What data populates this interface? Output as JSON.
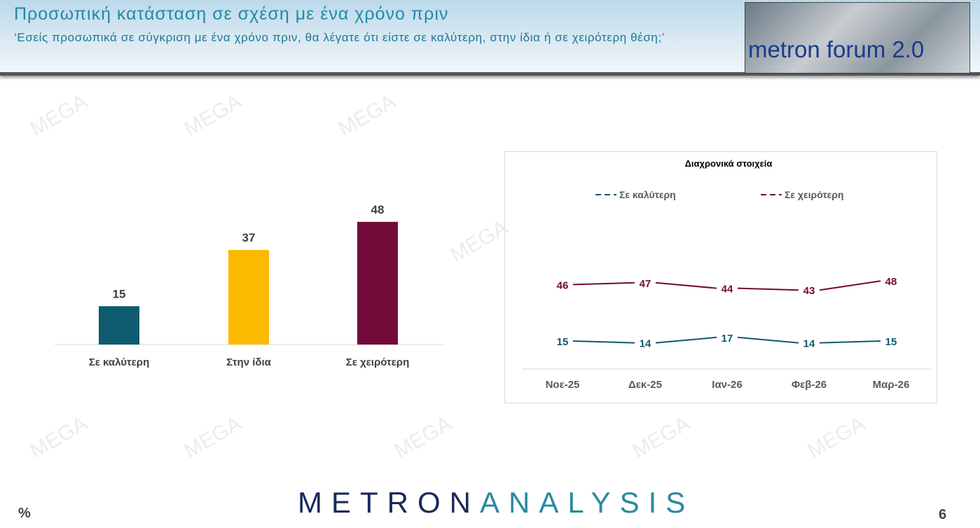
{
  "header": {
    "title": "Προσωπική κατάσταση σε σχέση με ένα χρόνο πριν",
    "subtitle": "‘Εσείς προσωπικά σε σύγκριση με ένα χρόνο πριν, θα λέγατε ότι είστε σε καλύτερη, στην ίδια ή σε χειρότερη θέση;’",
    "logo_text": "metron forum 2.0"
  },
  "watermark": "MEGA",
  "footer": {
    "logo_a": "METRON",
    "logo_b": "ANALYSIS",
    "unit": "%",
    "page": "6"
  },
  "chart_data": [
    {
      "type": "bar",
      "categories": [
        "Σε καλύτερη",
        "Στην ίδια",
        "Σε χειρότερη"
      ],
      "values": [
        15,
        37,
        48
      ],
      "colors": [
        "#0e5a6e",
        "#fbb900",
        "#720a3a"
      ],
      "title": "",
      "ylim": [
        0,
        50
      ]
    },
    {
      "type": "line",
      "title": "Διαχρονικά στοιχεία",
      "categories": [
        "Νοε-25",
        "Δεκ-25",
        "Ιαν-26",
        "Φεβ-26",
        "Μαρ-26"
      ],
      "legend": "top",
      "ylim": [
        0,
        60
      ],
      "series": [
        {
          "name": "Σε καλύτερη",
          "values": [
            15,
            14,
            17,
            14,
            15
          ],
          "color": "#0e5a6e"
        },
        {
          "name": "Σε χειρότερη",
          "values": [
            46,
            47,
            44,
            43,
            48
          ],
          "color": "#720a3a"
        }
      ]
    }
  ]
}
